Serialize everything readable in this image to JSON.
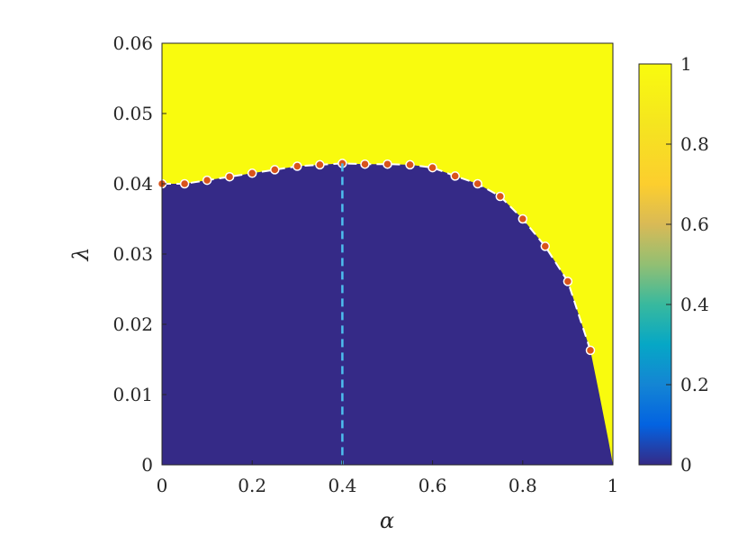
{
  "chart_data": {
    "type": "heatmap",
    "title": "",
    "xlabel": "α",
    "ylabel": "λ",
    "xlim": [
      0,
      1
    ],
    "ylim": [
      0,
      0.06
    ],
    "x_ticks": [
      "0",
      "0.2",
      "0.4",
      "0.6",
      "0.8",
      "1"
    ],
    "y_ticks": [
      "0",
      "0.01",
      "0.02",
      "0.03",
      "0.04",
      "0.05",
      "0.06"
    ],
    "colorbar": {
      "range": [
        0,
        1
      ],
      "ticks": [
        "0",
        "0.2",
        "0.4",
        "0.6",
        "0.8",
        "1"
      ]
    },
    "colors": {
      "low": "#352a87",
      "high": "#f9fb0e",
      "boundary_marker_fill": "#d9541a",
      "boundary_line": "#ffffff",
      "vertical_line": "#4dbeee"
    },
    "boundary": {
      "x": [
        0,
        0.05,
        0.1,
        0.15,
        0.2,
        0.25,
        0.3,
        0.35,
        0.4,
        0.45,
        0.5,
        0.55,
        0.6,
        0.65,
        0.7,
        0.75,
        0.8,
        0.85,
        0.9,
        0.95
      ],
      "y": [
        0.04,
        0.04,
        0.0405,
        0.041,
        0.0415,
        0.042,
        0.0425,
        0.0427,
        0.0429,
        0.0428,
        0.0428,
        0.0427,
        0.0423,
        0.0411,
        0.04,
        0.0382,
        0.035,
        0.0311,
        0.0261,
        0.0163
      ]
    },
    "vertical_line_x": 0.4,
    "grid": false,
    "legend": "none"
  }
}
